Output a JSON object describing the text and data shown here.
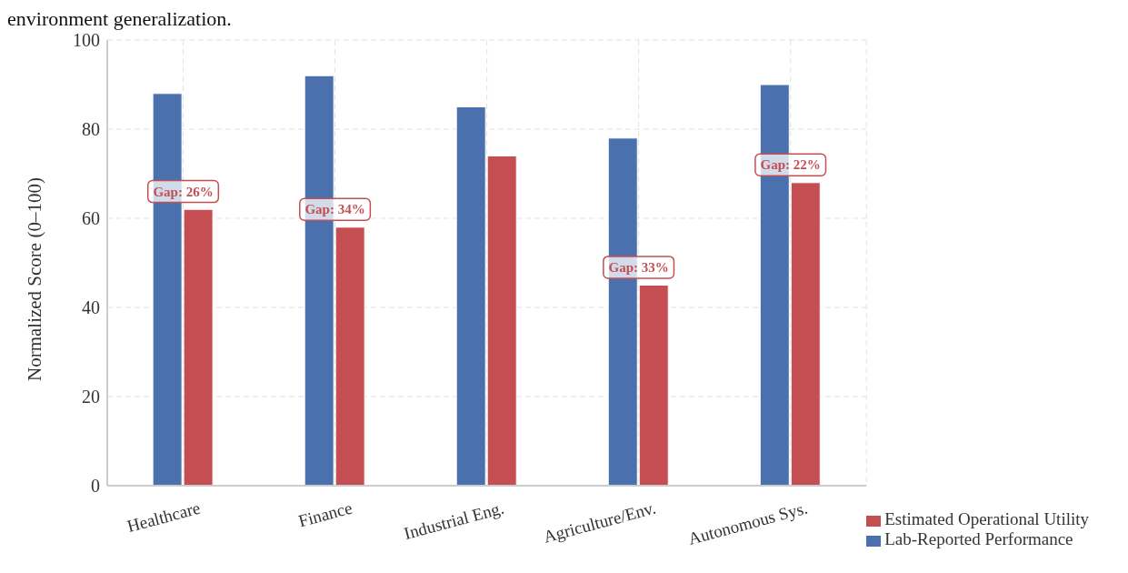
{
  "chart_data": {
    "type": "bar",
    "annotations": [
      "environment generalization.",
      {
        "text": "Gap: 26%",
        "x": "Healthcare",
        "y": 66
      },
      {
        "text": "Gap: 34%",
        "x": "Finance",
        "y": 62
      },
      {
        "text": "Gap: 33%",
        "x": "Agriculture/Env.",
        "y": 49
      },
      {
        "text": "Gap: 22%",
        "x": "Autonomous Sys.",
        "y": 72
      }
    ],
    "ylabel": "Normalized Score (0–100)",
    "categories": [
      "Healthcare",
      "Finance",
      "Industrial Eng.",
      "Agriculture/Env.",
      "Autonomous Sys."
    ],
    "series": [
      {
        "name": "Lab-Reported Performance",
        "color": "#4a70ad",
        "values": [
          88,
          92,
          85,
          78,
          90
        ]
      },
      {
        "name": "Estimated Operational Utility",
        "color": "#c44e52",
        "values": [
          62,
          58,
          74,
          45,
          68
        ]
      }
    ],
    "ylim": [
      0,
      100
    ],
    "yticks": [
      0,
      20,
      40,
      60,
      80,
      100
    ],
    "grid": true,
    "legend": "bottom right"
  }
}
